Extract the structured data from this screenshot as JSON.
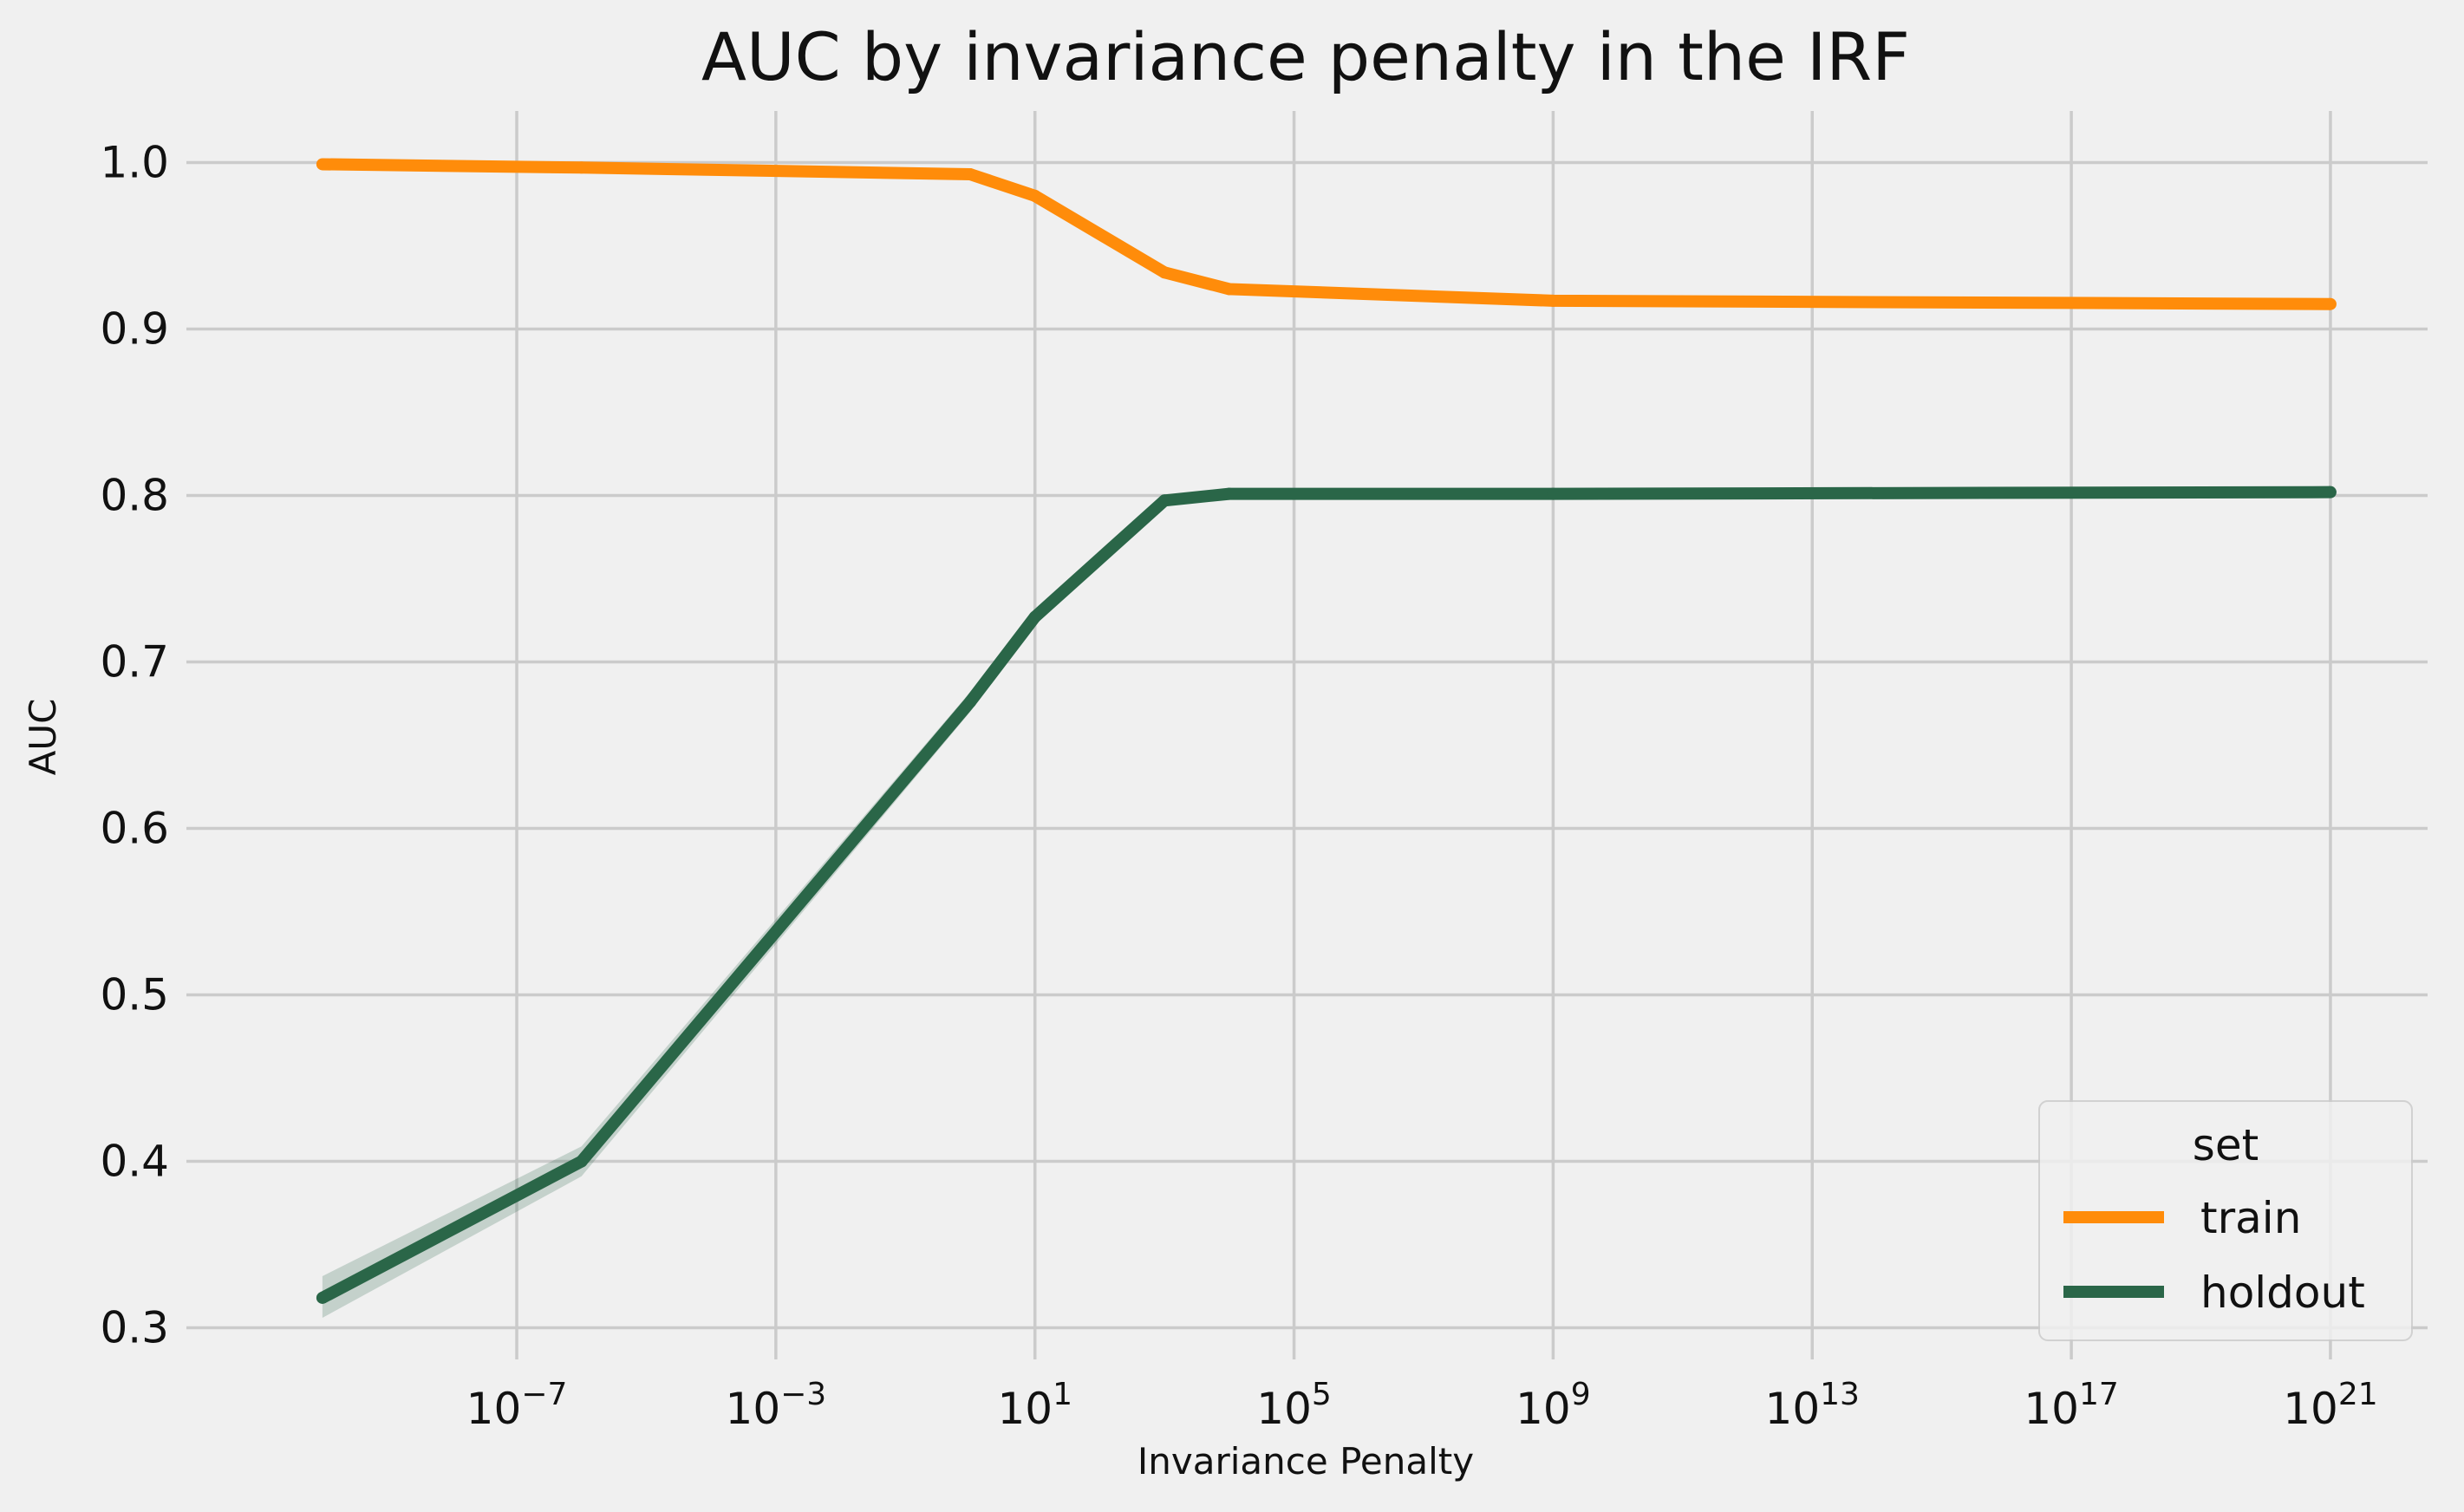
{
  "chart_data": {
    "type": "line",
    "title": "AUC by invariance penalty in the IRF",
    "xlabel": "Invariance Penalty",
    "ylabel": "AUC",
    "xscale": "log",
    "xlim_exp": [
      -12.1,
      22.5
    ],
    "ylim": [
      0.281,
      1.031
    ],
    "x_ticks": [
      {
        "base": "10",
        "exp": "−7",
        "value": -7
      },
      {
        "base": "10",
        "exp": "−3",
        "value": -3
      },
      {
        "base": "10",
        "exp": "1",
        "value": 1
      },
      {
        "base": "10",
        "exp": "5",
        "value": 5
      },
      {
        "base": "10",
        "exp": "9",
        "value": 9
      },
      {
        "base": "10",
        "exp": "13",
        "value": 13
      },
      {
        "base": "10",
        "exp": "17",
        "value": 17
      },
      {
        "base": "10",
        "exp": "21",
        "value": 21
      }
    ],
    "y_ticks": [
      {
        "label": "0.3",
        "value": 0.3
      },
      {
        "label": "0.4",
        "value": 0.4
      },
      {
        "label": "0.5",
        "value": 0.5
      },
      {
        "label": "0.6",
        "value": 0.6
      },
      {
        "label": "0.7",
        "value": 0.7
      },
      {
        "label": "0.8",
        "value": 0.8
      },
      {
        "label": "0.9",
        "value": 0.9
      },
      {
        "label": "1.0",
        "value": 1.0
      }
    ],
    "grid": true,
    "x_log10": [
      -10,
      -6,
      0,
      1,
      3,
      4,
      9,
      21
    ],
    "series": [
      {
        "name": "train",
        "color": "#ff8c0a",
        "values": [
          0.999,
          0.997,
          0.993,
          0.98,
          0.934,
          0.924,
          0.917,
          0.915
        ]
      },
      {
        "name": "holdout",
        "color": "#2a6648",
        "values": [
          0.318,
          0.4,
          0.676,
          0.727,
          0.797,
          0.801,
          0.801,
          0.802
        ],
        "band_lower": [
          0.306,
          0.391,
          0.67,
          0.725,
          0.795,
          0.8,
          0.8,
          0.801
        ],
        "band_upper": [
          0.331,
          0.409,
          0.682,
          0.729,
          0.799,
          0.802,
          0.802,
          0.803
        ]
      }
    ],
    "legend": {
      "title": "set",
      "position": "lower right"
    }
  }
}
